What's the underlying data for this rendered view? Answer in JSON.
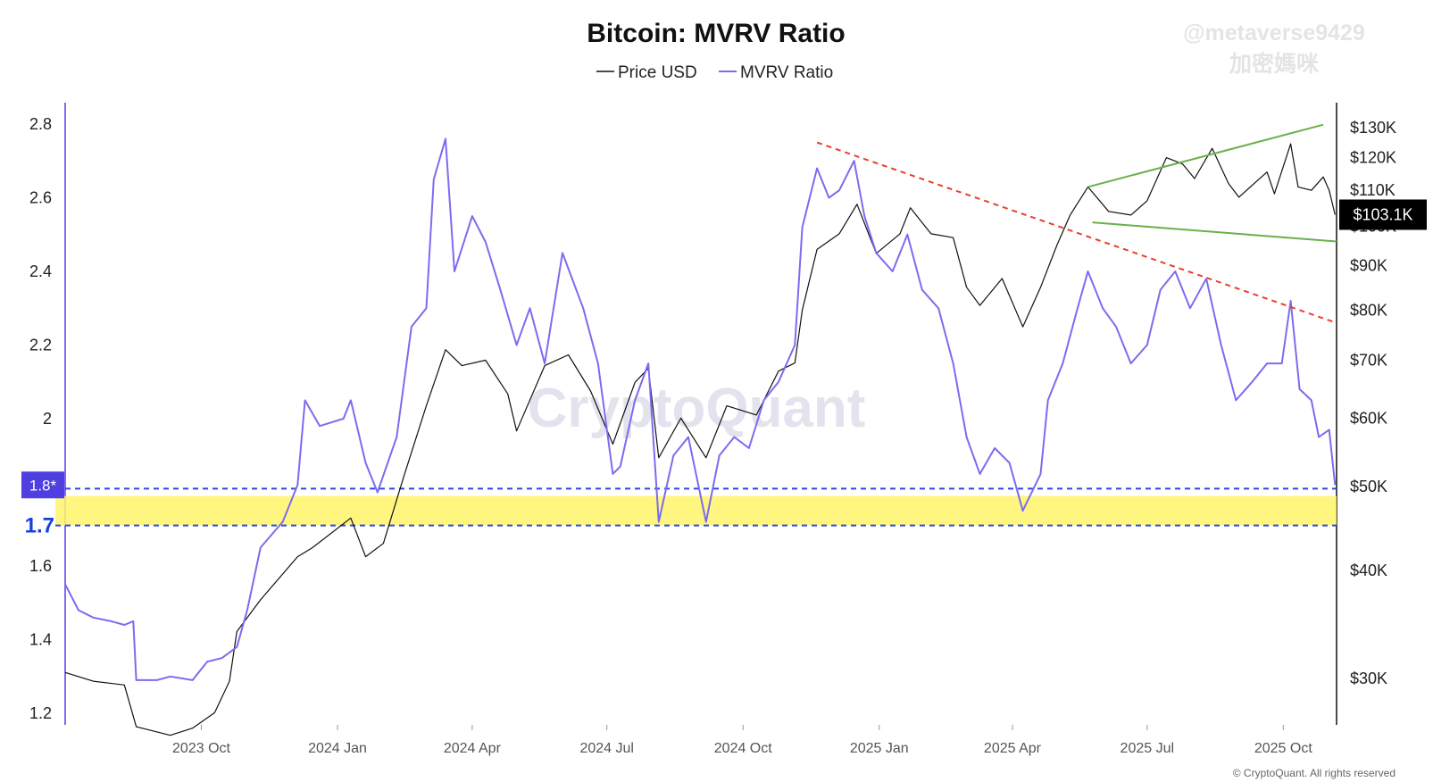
{
  "watermark_text": "CryptoQuant",
  "handle_line1": "@metaverse9429",
  "handle_line2": "加密媽咪",
  "copyright": "© CryptoQuant. All rights reserved",
  "colors": {
    "price": "#111111",
    "mvrv": "#7b6cf0",
    "highlight_fill": "#fff56a",
    "band_line": "#2a46e8",
    "resistance": "#e8402a",
    "channel": "#6ab04c",
    "badge_mvrv": "#4f3fe0",
    "badge_price": "#000000"
  },
  "annotations": {
    "band_label": "1.7",
    "mvrv_badge": "1.8*",
    "price_badge": "$103.1K"
  },
  "chart_data": {
    "type": "line",
    "title": "Bitcoin: MVRV Ratio",
    "legend": [
      {
        "name": "Price USD",
        "color": "#111111"
      },
      {
        "name": "MVRV Ratio",
        "color": "#7b6cf0"
      }
    ],
    "x_ticks": [
      "2023 Oct",
      "2024 Jan",
      "2024 Apr",
      "2024 Jul",
      "2024 Oct",
      "2025 Jan",
      "2025 Apr",
      "2025 Jul",
      "2025 Oct"
    ],
    "x_range": [
      "2023-07-01",
      "2025-11-06"
    ],
    "y_left": {
      "label": "MVRV Ratio",
      "ticks": [
        "2.8",
        "2.6",
        "2.4",
        "2.2",
        "2",
        "1.8",
        "1.6",
        "1.4",
        "1.2"
      ],
      "range": [
        1.2,
        2.8
      ]
    },
    "y_right": {
      "label": "Price USD",
      "scale": "log",
      "ticks": [
        "$130K",
        "$120K",
        "$110K",
        "$100K",
        "$90K",
        "$80K",
        "$70K",
        "$60K",
        "$50K",
        "$40K",
        "$30K"
      ],
      "tick_values": [
        130000,
        120000,
        110000,
        100000,
        90000,
        80000,
        70000,
        60000,
        50000,
        40000,
        30000
      ],
      "range": [
        25000,
        135000
      ]
    },
    "series": [
      {
        "name": "MVRV Ratio",
        "points": [
          [
            "2023-07-01",
            1.55
          ],
          [
            "2023-07-10",
            1.48
          ],
          [
            "2023-07-20",
            1.46
          ],
          [
            "2023-08-01",
            1.45
          ],
          [
            "2023-08-10",
            1.44
          ],
          [
            "2023-08-16",
            1.45
          ],
          [
            "2023-08-18",
            1.29
          ],
          [
            "2023-09-01",
            1.29
          ],
          [
            "2023-09-10",
            1.3
          ],
          [
            "2023-09-25",
            1.29
          ],
          [
            "2023-10-05",
            1.34
          ],
          [
            "2023-10-15",
            1.35
          ],
          [
            "2023-10-25",
            1.38
          ],
          [
            "2023-11-01",
            1.48
          ],
          [
            "2023-11-10",
            1.65
          ],
          [
            "2023-11-25",
            1.72
          ],
          [
            "2023-12-05",
            1.82
          ],
          [
            "2023-12-10",
            2.05
          ],
          [
            "2023-12-20",
            1.98
          ],
          [
            "2024-01-05",
            2.0
          ],
          [
            "2024-01-10",
            2.05
          ],
          [
            "2024-01-20",
            1.88
          ],
          [
            "2024-01-28",
            1.8
          ],
          [
            "2024-02-10",
            1.95
          ],
          [
            "2024-02-20",
            2.25
          ],
          [
            "2024-03-01",
            2.3
          ],
          [
            "2024-03-06",
            2.65
          ],
          [
            "2024-03-14",
            2.76
          ],
          [
            "2024-03-20",
            2.4
          ],
          [
            "2024-04-01",
            2.55
          ],
          [
            "2024-04-10",
            2.48
          ],
          [
            "2024-04-20",
            2.35
          ],
          [
            "2024-05-01",
            2.2
          ],
          [
            "2024-05-10",
            2.3
          ],
          [
            "2024-05-20",
            2.15
          ],
          [
            "2024-06-01",
            2.45
          ],
          [
            "2024-06-15",
            2.3
          ],
          [
            "2024-06-25",
            2.15
          ],
          [
            "2024-07-05",
            1.85
          ],
          [
            "2024-07-10",
            1.87
          ],
          [
            "2024-07-20",
            2.05
          ],
          [
            "2024-07-29",
            2.15
          ],
          [
            "2024-08-05",
            1.72
          ],
          [
            "2024-08-15",
            1.9
          ],
          [
            "2024-08-25",
            1.95
          ],
          [
            "2024-09-06",
            1.72
          ],
          [
            "2024-09-15",
            1.9
          ],
          [
            "2024-09-25",
            1.95
          ],
          [
            "2024-10-05",
            1.92
          ],
          [
            "2024-10-15",
            2.05
          ],
          [
            "2024-10-25",
            2.1
          ],
          [
            "2024-11-05",
            2.2
          ],
          [
            "2024-11-10",
            2.52
          ],
          [
            "2024-11-20",
            2.68
          ],
          [
            "2024-11-28",
            2.6
          ],
          [
            "2024-12-05",
            2.62
          ],
          [
            "2024-12-15",
            2.7
          ],
          [
            "2024-12-22",
            2.55
          ],
          [
            "2024-12-30",
            2.45
          ],
          [
            "2025-01-10",
            2.4
          ],
          [
            "2025-01-20",
            2.5
          ],
          [
            "2025-01-30",
            2.35
          ],
          [
            "2025-02-10",
            2.3
          ],
          [
            "2025-02-20",
            2.15
          ],
          [
            "2025-03-01",
            1.95
          ],
          [
            "2025-03-10",
            1.85
          ],
          [
            "2025-03-20",
            1.92
          ],
          [
            "2025-03-30",
            1.88
          ],
          [
            "2025-04-08",
            1.75
          ],
          [
            "2025-04-20",
            1.85
          ],
          [
            "2025-04-25",
            2.05
          ],
          [
            "2025-05-05",
            2.15
          ],
          [
            "2025-05-15",
            2.3
          ],
          [
            "2025-05-22",
            2.4
          ],
          [
            "2025-06-01",
            2.3
          ],
          [
            "2025-06-10",
            2.25
          ],
          [
            "2025-06-20",
            2.15
          ],
          [
            "2025-07-01",
            2.2
          ],
          [
            "2025-07-10",
            2.35
          ],
          [
            "2025-07-20",
            2.4
          ],
          [
            "2025-07-30",
            2.3
          ],
          [
            "2025-08-10",
            2.38
          ],
          [
            "2025-08-20",
            2.2
          ],
          [
            "2025-08-30",
            2.05
          ],
          [
            "2025-09-10",
            2.1
          ],
          [
            "2025-09-20",
            2.15
          ],
          [
            "2025-09-30",
            2.15
          ],
          [
            "2025-10-06",
            2.32
          ],
          [
            "2025-10-12",
            2.08
          ],
          [
            "2025-10-20",
            2.05
          ],
          [
            "2025-10-25",
            1.95
          ],
          [
            "2025-11-01",
            1.97
          ],
          [
            "2025-11-05",
            1.82
          ]
        ]
      },
      {
        "name": "Price USD",
        "points": [
          [
            "2023-07-01",
            30500
          ],
          [
            "2023-07-20",
            29800
          ],
          [
            "2023-08-10",
            29500
          ],
          [
            "2023-08-18",
            26400
          ],
          [
            "2023-09-10",
            25800
          ],
          [
            "2023-09-25",
            26300
          ],
          [
            "2023-10-10",
            27400
          ],
          [
            "2023-10-20",
            29800
          ],
          [
            "2023-10-25",
            34000
          ],
          [
            "2023-11-10",
            37000
          ],
          [
            "2023-12-05",
            41500
          ],
          [
            "2023-12-15",
            42500
          ],
          [
            "2024-01-10",
            46000
          ],
          [
            "2024-01-20",
            41500
          ],
          [
            "2024-02-01",
            43000
          ],
          [
            "2024-02-15",
            51500
          ],
          [
            "2024-03-01",
            62000
          ],
          [
            "2024-03-14",
            72000
          ],
          [
            "2024-03-25",
            69000
          ],
          [
            "2024-04-10",
            70000
          ],
          [
            "2024-04-25",
            64000
          ],
          [
            "2024-05-01",
            58000
          ],
          [
            "2024-05-20",
            69000
          ],
          [
            "2024-06-05",
            71000
          ],
          [
            "2024-06-20",
            64500
          ],
          [
            "2024-07-05",
            56000
          ],
          [
            "2024-07-20",
            66000
          ],
          [
            "2024-07-29",
            68500
          ],
          [
            "2024-08-05",
            54000
          ],
          [
            "2024-08-20",
            60000
          ],
          [
            "2024-09-06",
            54000
          ],
          [
            "2024-09-20",
            62000
          ],
          [
            "2024-10-10",
            60500
          ],
          [
            "2024-10-25",
            68000
          ],
          [
            "2024-11-05",
            69500
          ],
          [
            "2024-11-10",
            80000
          ],
          [
            "2024-11-20",
            94000
          ],
          [
            "2024-12-05",
            98000
          ],
          [
            "2024-12-17",
            106000
          ],
          [
            "2024-12-30",
            93000
          ],
          [
            "2025-01-15",
            98000
          ],
          [
            "2025-01-22",
            105000
          ],
          [
            "2025-02-05",
            98000
          ],
          [
            "2025-02-20",
            97000
          ],
          [
            "2025-03-01",
            85000
          ],
          [
            "2025-03-10",
            81000
          ],
          [
            "2025-03-25",
            87000
          ],
          [
            "2025-04-08",
            76500
          ],
          [
            "2025-04-20",
            85000
          ],
          [
            "2025-05-01",
            95000
          ],
          [
            "2025-05-10",
            103000
          ],
          [
            "2025-05-22",
            111000
          ],
          [
            "2025-06-05",
            104000
          ],
          [
            "2025-06-20",
            103000
          ],
          [
            "2025-07-01",
            107000
          ],
          [
            "2025-07-14",
            120000
          ],
          [
            "2025-07-25",
            118000
          ],
          [
            "2025-08-02",
            113500
          ],
          [
            "2025-08-14",
            123000
          ],
          [
            "2025-08-25",
            112000
          ],
          [
            "2025-09-01",
            108000
          ],
          [
            "2025-09-20",
            115500
          ],
          [
            "2025-09-25",
            109000
          ],
          [
            "2025-10-06",
            124500
          ],
          [
            "2025-10-11",
            111000
          ],
          [
            "2025-10-20",
            110000
          ],
          [
            "2025-10-28",
            114000
          ],
          [
            "2025-11-01",
            110000
          ],
          [
            "2025-11-05",
            103100
          ]
        ]
      }
    ],
    "highlight_band": {
      "mvrv_from": 1.71,
      "mvrv_to": 1.79
    },
    "band_lines": [
      1.71,
      1.81
    ],
    "resistance_line": [
      [
        "2024-11-20",
        2.75
      ],
      [
        "2025-11-06",
        2.26
      ]
    ],
    "price_channel_upper": [
      [
        "2025-05-22",
        111000
      ],
      [
        "2025-10-28",
        131000
      ]
    ],
    "price_channel_lower": [
      [
        "2025-05-25",
        101000
      ],
      [
        "2025-11-06",
        96000
      ]
    ]
  }
}
